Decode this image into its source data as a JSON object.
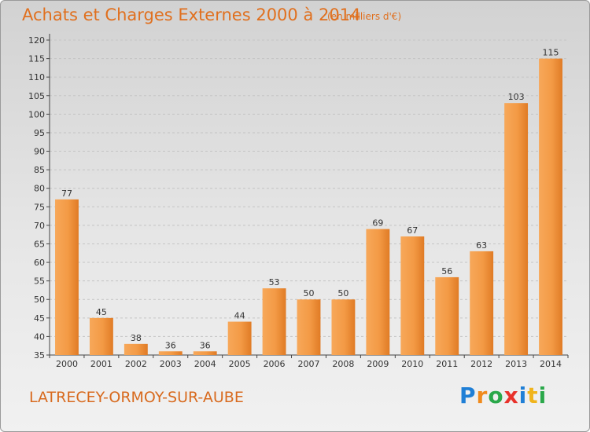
{
  "header": {
    "title": "Achats et Charges Externes 2000 à 2014",
    "subtitle": "(en milliers d'€)"
  },
  "footer": {
    "city": "LATRECEY-ORMOY-SUR-AUBE",
    "logo_letters": [
      "P",
      "r",
      "o",
      "x",
      "i",
      "t",
      "i"
    ],
    "logo_colors": [
      "#1f7fd6",
      "#f08a1c",
      "#2aa84a",
      "#e8322b",
      "#1f7fd6",
      "#f0b41c",
      "#2aa84a"
    ]
  },
  "chart_data": {
    "type": "bar",
    "title": "Achats et Charges Externes 2000 à 2014",
    "subtitle": "(en milliers d'€)",
    "categories": [
      "2000",
      "2001",
      "2002",
      "2003",
      "2004",
      "2005",
      "2006",
      "2007",
      "2008",
      "2009",
      "2010",
      "2011",
      "2012",
      "2013",
      "2014"
    ],
    "values": [
      77,
      45,
      38,
      36,
      36,
      44,
      53,
      50,
      50,
      69,
      67,
      56,
      63,
      103,
      115
    ],
    "ylim": [
      35,
      120
    ],
    "yticks": [
      35,
      40,
      45,
      50,
      55,
      60,
      65,
      70,
      75,
      80,
      85,
      90,
      95,
      100,
      105,
      110,
      115,
      120
    ],
    "grid": true,
    "bar_color": "#f0923a"
  }
}
